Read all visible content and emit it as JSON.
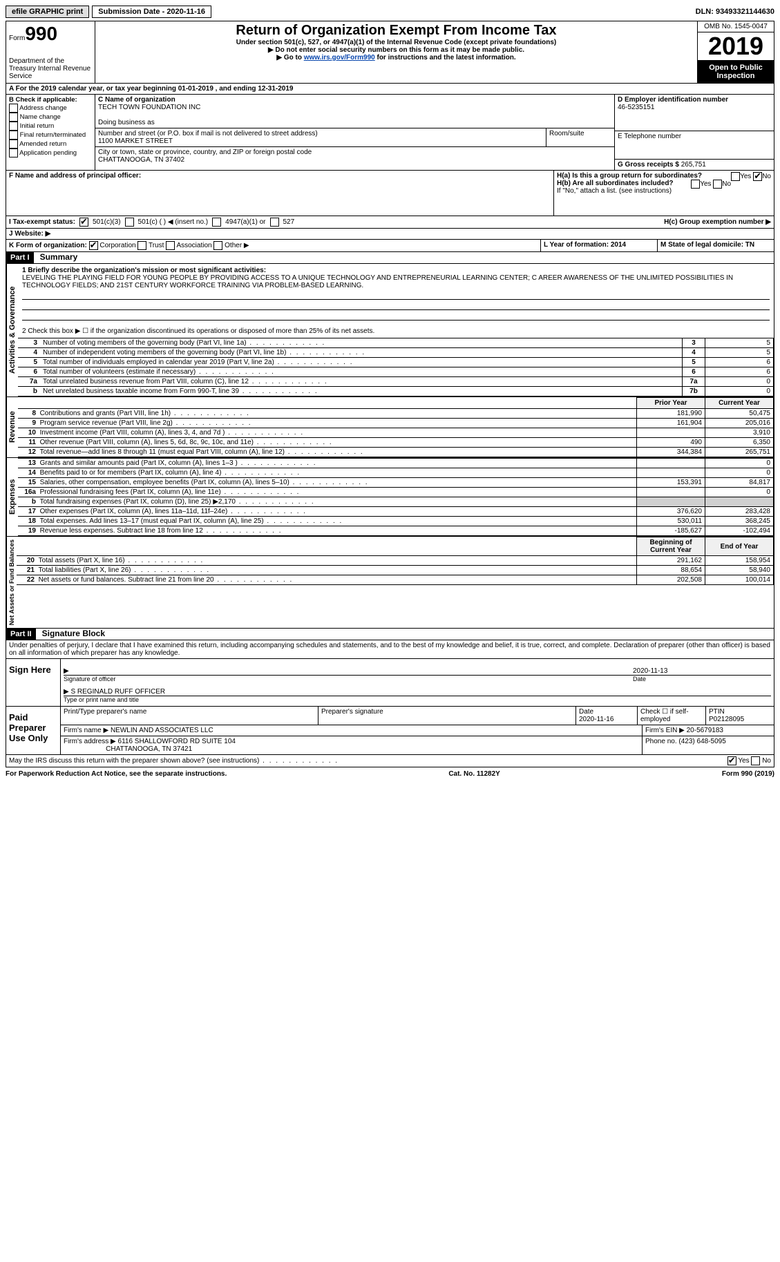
{
  "topbar": {
    "efile": "efile GRAPHIC print",
    "submission_label": "Submission Date - 2020-11-16",
    "dln": "DLN: 93493321144630"
  },
  "header": {
    "form_prefix": "Form",
    "form_number": "990",
    "dept": "Department of the Treasury\nInternal Revenue Service",
    "title": "Return of Organization Exempt From Income Tax",
    "subtitle": "Under section 501(c), 527, or 4947(a)(1) of the Internal Revenue Code (except private foundations)",
    "note1": "▶ Do not enter social security numbers on this form as it may be made public.",
    "note2_pre": "▶ Go to ",
    "note2_link": "www.irs.gov/Form990",
    "note2_post": " for instructions and the latest information.",
    "omb": "OMB No. 1545-0047",
    "year": "2019",
    "open_public": "Open to Public Inspection"
  },
  "line_a": "A For the 2019 calendar year, or tax year beginning 01-01-2019    , and ending 12-31-2019",
  "box_b": {
    "label": "B Check if applicable:",
    "items": [
      "Address change",
      "Name change",
      "Initial return",
      "Final return/terminated",
      "Amended return",
      "Application pending"
    ]
  },
  "box_c": {
    "name_label": "C Name of organization",
    "name": "TECH TOWN FOUNDATION INC",
    "dba_label": "Doing business as",
    "dba": "",
    "addr_label": "Number and street (or P.O. box if mail is not delivered to street address)",
    "room_label": "Room/suite",
    "addr": "1100 MARKET STREET",
    "city_label": "City or town, state or province, country, and ZIP or foreign postal code",
    "city": "CHATTANOOGA, TN  37402"
  },
  "box_d": {
    "label": "D Employer identification number",
    "value": "46-5235151"
  },
  "box_e": {
    "label": "E Telephone number",
    "value": ""
  },
  "box_g": {
    "label": "G Gross receipts $",
    "value": "265,751"
  },
  "box_f": {
    "label": "F  Name and address of principal officer:",
    "value": ""
  },
  "box_h": {
    "a_label": "H(a)  Is this a group return for subordinates?",
    "b_label": "H(b)  Are all subordinates included?",
    "no_note": "If \"No,\" attach a list. (see instructions)",
    "c_label": "H(c)  Group exemption number ▶",
    "yes": "Yes",
    "no": "No"
  },
  "tax_exempt": {
    "label": "I    Tax-exempt status:",
    "c3": "501(c)(3)",
    "c_insert": "501(c) (  ) ◀ (insert no.)",
    "a1": "4947(a)(1) or",
    "s527": "527"
  },
  "website": {
    "label": "J    Website: ▶",
    "value": ""
  },
  "box_k": {
    "label": "K Form of organization:",
    "corp": "Corporation",
    "trust": "Trust",
    "assoc": "Association",
    "other": "Other ▶"
  },
  "box_l": {
    "label": "L Year of formation: 2014"
  },
  "box_m": {
    "label": "M State of legal domicile: TN"
  },
  "part1": {
    "header": "Part I",
    "title": "Summary",
    "line1_label": "1   Briefly describe the organization's mission or most significant activities:",
    "mission": "LEVELING THE PLAYING FIELD FOR YOUNG PEOPLE BY PROVIDING ACCESS TO A UNIQUE TECHNOLOGY AND ENTREPRENEURIAL LEARNING CENTER; C AREER AWARENESS OF THE UNLIMITED POSSIBILITIES IN TECHNOLOGY FIELDS; AND 21ST CENTURY WORKFORCE TRAINING VIA PROBLEM-BASED LEARNING.",
    "line2": "2    Check this box ▶ ☐  if the organization discontinued its operations or disposed of more than 25% of its net assets.",
    "gov_label": "Activities & Governance",
    "rows_gov": [
      {
        "n": "3",
        "d": "Number of voting members of the governing body (Part VI, line 1a)",
        "ln": "3",
        "v": "5"
      },
      {
        "n": "4",
        "d": "Number of independent voting members of the governing body (Part VI, line 1b)",
        "ln": "4",
        "v": "5"
      },
      {
        "n": "5",
        "d": "Total number of individuals employed in calendar year 2019 (Part V, line 2a)",
        "ln": "5",
        "v": "6"
      },
      {
        "n": "6",
        "d": "Total number of volunteers (estimate if necessary)",
        "ln": "6",
        "v": "6"
      },
      {
        "n": "7a",
        "d": "Total unrelated business revenue from Part VIII, column (C), line 12",
        "ln": "7a",
        "v": "0"
      },
      {
        "n": "b",
        "d": "Net unrelated business taxable income from Form 990-T, line 39",
        "ln": "7b",
        "v": "0"
      }
    ],
    "rev_label": "Revenue",
    "col_prior": "Prior Year",
    "col_current": "Current Year",
    "rows_rev": [
      {
        "n": "8",
        "d": "Contributions and grants (Part VIII, line 1h)",
        "p": "181,990",
        "c": "50,475"
      },
      {
        "n": "9",
        "d": "Program service revenue (Part VIII, line 2g)",
        "p": "161,904",
        "c": "205,016"
      },
      {
        "n": "10",
        "d": "Investment income (Part VIII, column (A), lines 3, 4, and 7d )",
        "p": "",
        "c": "3,910"
      },
      {
        "n": "11",
        "d": "Other revenue (Part VIII, column (A), lines 5, 6d, 8c, 9c, 10c, and 11e)",
        "p": "490",
        "c": "6,350"
      },
      {
        "n": "12",
        "d": "Total revenue—add lines 8 through 11 (must equal Part VIII, column (A), line 12)",
        "p": "344,384",
        "c": "265,751"
      }
    ],
    "exp_label": "Expenses",
    "rows_exp": [
      {
        "n": "13",
        "d": "Grants and similar amounts paid (Part IX, column (A), lines 1–3 )",
        "p": "",
        "c": "0"
      },
      {
        "n": "14",
        "d": "Benefits paid to or for members (Part IX, column (A), line 4)",
        "p": "",
        "c": "0"
      },
      {
        "n": "15",
        "d": "Salaries, other compensation, employee benefits (Part IX, column (A), lines 5–10)",
        "p": "153,391",
        "c": "84,817"
      },
      {
        "n": "16a",
        "d": "Professional fundraising fees (Part IX, column (A), line 11e)",
        "p": "",
        "c": "0"
      },
      {
        "n": "b",
        "d": "Total fundraising expenses (Part IX, column (D), line 25) ▶2,170",
        "p": "grey",
        "c": "grey"
      },
      {
        "n": "17",
        "d": "Other expenses (Part IX, column (A), lines 11a–11d, 11f–24e)",
        "p": "376,620",
        "c": "283,428"
      },
      {
        "n": "18",
        "d": "Total expenses. Add lines 13–17 (must equal Part IX, column (A), line 25)",
        "p": "530,011",
        "c": "368,245"
      },
      {
        "n": "19",
        "d": "Revenue less expenses. Subtract line 18 from line 12",
        "p": "-185,627",
        "c": "-102,494"
      }
    ],
    "net_label": "Net Assets or Fund Balances",
    "col_begin": "Beginning of Current Year",
    "col_end": "End of Year",
    "rows_net": [
      {
        "n": "20",
        "d": "Total assets (Part X, line 16)",
        "p": "291,162",
        "c": "158,954"
      },
      {
        "n": "21",
        "d": "Total liabilities (Part X, line 26)",
        "p": "88,654",
        "c": "58,940"
      },
      {
        "n": "22",
        "d": "Net assets or fund balances. Subtract line 21 from line 20",
        "p": "202,508",
        "c": "100,014"
      }
    ]
  },
  "part2": {
    "header": "Part II",
    "title": "Signature Block",
    "perjury": "Under penalties of perjury, I declare that I have examined this return, including accompanying schedules and statements, and to the best of my knowledge and belief, it is true, correct, and complete. Declaration of preparer (other than officer) is based on all information of which preparer has any knowledge.",
    "sign_here": "Sign Here",
    "sig_officer_label": "Signature of officer",
    "sig_date": "2020-11-13",
    "date_label": "Date",
    "officer_name": "S REGINALD RUFF  OFFICER",
    "officer_name_label": "Type or print name and title",
    "paid": "Paid Preparer Use Only",
    "pt_name_label": "Print/Type preparer's name",
    "pt_sig_label": "Preparer's signature",
    "pt_date_label": "Date",
    "pt_date": "2020-11-16",
    "pt_check_label": "Check ☐ if self-employed",
    "ptin_label": "PTIN",
    "ptin": "P02128095",
    "firm_name_label": "Firm's name    ▶",
    "firm_name": "NEWLIN AND ASSOCIATES LLC",
    "firm_ein_label": "Firm's EIN ▶",
    "firm_ein": "20-5679183",
    "firm_addr_label": "Firm's address ▶",
    "firm_addr": "6116 SHALLOWFORD RD SUITE 104",
    "firm_city": "CHATTANOOGA, TN  37421",
    "phone_label": "Phone no.",
    "phone": "(423) 648-5095",
    "discuss": "May the IRS discuss this return with the preparer shown above? (see instructions)",
    "yes": "Yes",
    "no": "No"
  },
  "footer": {
    "left": "For Paperwork Reduction Act Notice, see the separate instructions.",
    "mid": "Cat. No. 11282Y",
    "right": "Form 990 (2019)"
  }
}
